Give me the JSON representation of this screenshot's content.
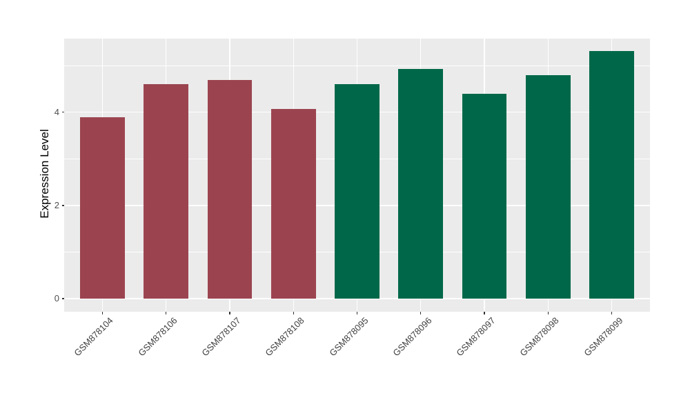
{
  "chart_data": {
    "type": "bar",
    "title": "",
    "xlabel": "",
    "ylabel": "Expression Level",
    "categories": [
      "GSM878104",
      "GSM878106",
      "GSM878107",
      "GSM878108",
      "GSM878095",
      "GSM878096",
      "GSM878097",
      "GSM878098",
      "GSM878099"
    ],
    "values": [
      3.9,
      4.61,
      4.69,
      4.07,
      4.61,
      4.93,
      4.4,
      4.8,
      5.31
    ],
    "groups": [
      "group1",
      "group1",
      "group1",
      "group1",
      "group2",
      "group2",
      "group2",
      "group2",
      "group2"
    ],
    "group_colors": {
      "group1": "#9B4450",
      "group2": "#006849"
    },
    "ylim": [
      -0.28,
      5.58
    ],
    "yticks_major": [
      0,
      2,
      4
    ],
    "yticks_minor": [
      1,
      3,
      5
    ],
    "grid": true,
    "legend": "none",
    "panel_background": "#EBEBEB",
    "grid_color": "#FFFFFF",
    "tick_mark_color": "#333333",
    "axis_text_color": "#4D4D4D",
    "axis_title_color": "#000000",
    "bar_width_fraction": 0.7
  }
}
